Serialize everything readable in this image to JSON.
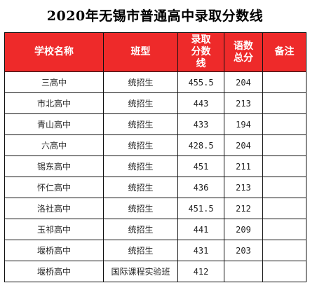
{
  "title": "2020年无锡市普通高中录取分数线",
  "table": {
    "headers": [
      "学校名称",
      "班型",
      "录取分数线",
      "语数总分",
      "备注"
    ],
    "rows": [
      [
        "三高中",
        "统招生",
        "455.5",
        "204",
        ""
      ],
      [
        "市北高中",
        "统招生",
        "443",
        "213",
        ""
      ],
      [
        "青山高中",
        "统招生",
        "433",
        "194",
        ""
      ],
      [
        "六高中",
        "统招生",
        "428.5",
        "204",
        ""
      ],
      [
        "锡东高中",
        "统招生",
        "451",
        "211",
        ""
      ],
      [
        "怀仁高中",
        "统招生",
        "436",
        "213",
        ""
      ],
      [
        "洛社高中",
        "统招生",
        "451.5",
        "212",
        ""
      ],
      [
        "玉祁高中",
        "统招生",
        "441",
        "209",
        ""
      ],
      [
        "堰桥高中",
        "统招生",
        "431",
        "203",
        ""
      ],
      [
        "堰桥高中",
        "国际课程实验班",
        "412",
        "",
        ""
      ]
    ]
  },
  "colors": {
    "header_bg": "#ee2a2a",
    "header_text": "#ffffff",
    "border": "#111111"
  }
}
